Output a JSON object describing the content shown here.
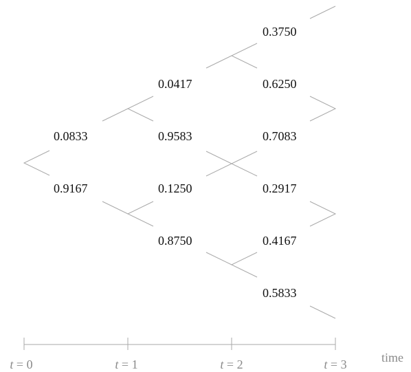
{
  "tree": {
    "nodes": [
      {
        "id": "t1_u",
        "value": "0.0833"
      },
      {
        "id": "t1_d",
        "value": "0.9167"
      },
      {
        "id": "t2_uu",
        "value": "0.0417"
      },
      {
        "id": "t2_ud",
        "value": "0.9583"
      },
      {
        "id": "t2_du",
        "value": "0.1250"
      },
      {
        "id": "t2_dd",
        "value": "0.8750"
      },
      {
        "id": "t3_1",
        "value": "0.3750"
      },
      {
        "id": "t3_2",
        "value": "0.6250"
      },
      {
        "id": "t3_3",
        "value": "0.7083"
      },
      {
        "id": "t3_4",
        "value": "0.2917"
      },
      {
        "id": "t3_5",
        "value": "0.4167"
      },
      {
        "id": "t3_6",
        "value": "0.5833"
      }
    ]
  },
  "axis": {
    "ticks": [
      {
        "var": "t",
        "eq": " = 0"
      },
      {
        "var": "t",
        "eq": " = 1"
      },
      {
        "var": "t",
        "eq": " = 2"
      },
      {
        "var": "t",
        "eq": " = 3"
      }
    ],
    "label": "time"
  }
}
